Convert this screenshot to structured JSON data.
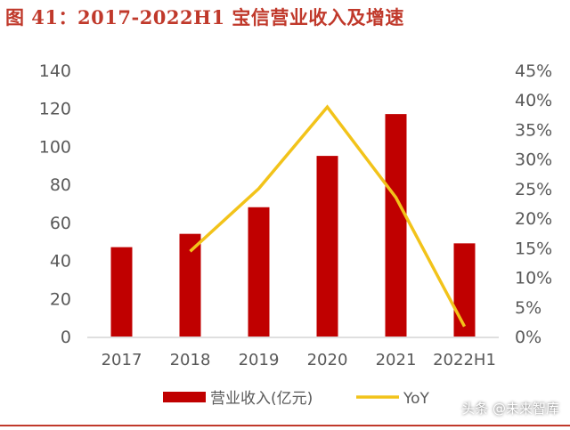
{
  "title": "图 41：2017-2022H1 宝信营业收入及增速",
  "watermark": "头条 @未来智库",
  "chart_data": {
    "type": "bar+line",
    "categories": [
      "2017",
      "2018",
      "2019",
      "2020",
      "2021",
      "2022H1"
    ],
    "series": [
      {
        "name": "营业收入(亿元)",
        "type": "bar",
        "axis": "left",
        "color": "#c00000",
        "values": [
          47,
          54,
          68,
          95,
          117,
          49
        ]
      },
      {
        "name": "YoY",
        "type": "line",
        "axis": "right",
        "color": "#f2c31a",
        "values": [
          null,
          14.4,
          25.0,
          38.8,
          23.5,
          1.7
        ]
      }
    ],
    "left_axis": {
      "ylim": [
        0,
        140
      ],
      "ticks": [
        "0",
        "20",
        "40",
        "60",
        "80",
        "100",
        "120",
        "140"
      ]
    },
    "right_axis": {
      "ylim": [
        0,
        45
      ],
      "ticks": [
        "0%",
        "5%",
        "10%",
        "15%",
        "20%",
        "25%",
        "30%",
        "35%",
        "40%",
        "45%"
      ]
    },
    "grid": false,
    "legend": "bottom"
  }
}
